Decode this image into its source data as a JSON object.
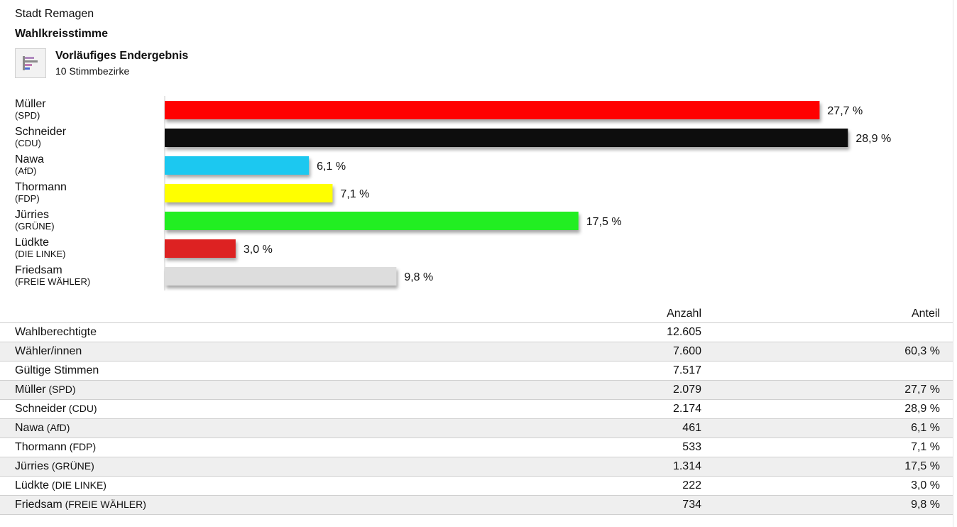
{
  "location": "Stadt Remagen",
  "section_title": "Wahlkreisstimme",
  "status": {
    "icon": "bar-chart-icon",
    "title": "Vorläufiges Endergebnis",
    "subtitle": "10 Stimmbezirke"
  },
  "chart_data": {
    "type": "bar",
    "orientation": "horizontal",
    "categories": [
      "Müller",
      "Schneider",
      "Nawa",
      "Thormann",
      "Jürries",
      "Lüdkte",
      "Friedsam"
    ],
    "parties": [
      "(SPD)",
      "(CDU)",
      "(AfD)",
      "(FDP)",
      "(GRÜNE)",
      "(DIE LINKE)",
      "(FREIE WÄHLER)"
    ],
    "values": [
      27.7,
      28.9,
      6.1,
      7.1,
      17.5,
      3.0,
      9.8
    ],
    "value_labels": [
      "27,7 %",
      "28,9 %",
      "6,1 %",
      "7,1 %",
      "17,5 %",
      "3,0 %",
      "9,8 %"
    ],
    "colors": [
      "#ff0000",
      "#111111",
      "#1ec8f0",
      "#ffff00",
      "#22ee22",
      "#dd2222",
      "#dddddd"
    ],
    "xlim": [
      0,
      30
    ],
    "grid": false,
    "legend": "none"
  },
  "table": {
    "header": {
      "count": "Anzahl",
      "share": "Anteil"
    },
    "rows": [
      {
        "label": "Wahlberechtigte",
        "party": "",
        "count": "12.605",
        "share": ""
      },
      {
        "label": "Wähler/innen",
        "party": "",
        "count": "7.600",
        "share": "60,3 %"
      },
      {
        "label": "Gültige Stimmen",
        "party": "",
        "count": "7.517",
        "share": ""
      },
      {
        "label": "Müller",
        "party": "(SPD)",
        "count": "2.079",
        "share": "27,7 %"
      },
      {
        "label": "Schneider",
        "party": "(CDU)",
        "count": "2.174",
        "share": "28,9 %"
      },
      {
        "label": "Nawa",
        "party": "(AfD)",
        "count": "461",
        "share": "6,1 %"
      },
      {
        "label": "Thormann",
        "party": "(FDP)",
        "count": "533",
        "share": "7,1 %"
      },
      {
        "label": "Jürries",
        "party": "(GRÜNE)",
        "count": "1.314",
        "share": "17,5 %"
      },
      {
        "label": "Lüdkte",
        "party": "(DIE LINKE)",
        "count": "222",
        "share": "3,0 %"
      },
      {
        "label": "Friedsam",
        "party": "(FREIE WÄHLER)",
        "count": "734",
        "share": "9,8 %"
      }
    ]
  }
}
